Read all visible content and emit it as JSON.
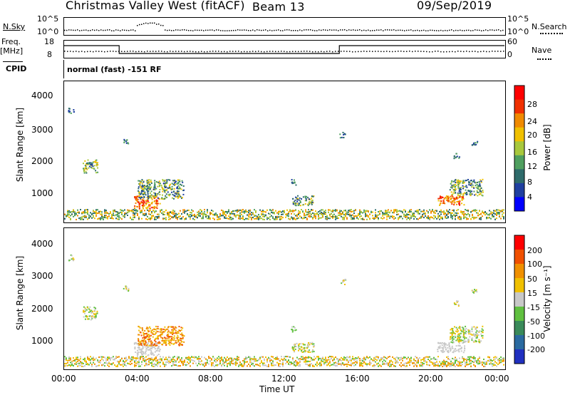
{
  "header": {
    "station": "Christmas Valley West (fitACF)",
    "beam": "Beam 13",
    "date": "09/Sep/2019"
  },
  "strip_panels": {
    "nsky_label": "N.Sky",
    "nsky_ticks": [
      "10^5",
      "10^0"
    ],
    "nsearch_label": "N.Search",
    "nsearch_ticks": [
      "10^5",
      "10^0"
    ],
    "freq_label": "Freq.",
    "freq_unit": "[MHz]",
    "freq_ticks": [
      "18",
      "8"
    ],
    "nave_label": "Nave",
    "nave_ticks": [
      "60",
      "0"
    ],
    "cpid_label": "CPID",
    "cpid_text": "normal (fast) -151 RF"
  },
  "power_panel": {
    "ylabel": "Slant Range [km]",
    "yticks": [
      "4000",
      "3000",
      "2000",
      "1000"
    ],
    "colorbar_label": "Power [dB]",
    "colorbar_ticks": [
      "28",
      "24",
      "20",
      "16",
      "12",
      "8",
      "4"
    ],
    "colors": [
      "#0000ff",
      "#1f3fa0",
      "#2e6b6b",
      "#4f9f5f",
      "#a8c83c",
      "#f0c000",
      "#f08a00",
      "#f03000",
      "#ff0000"
    ]
  },
  "velocity_panel": {
    "ylabel": "Slant Range [km]",
    "yticks": [
      "4000",
      "3000",
      "2000",
      "1000"
    ],
    "colorbar_label": "Velocity [m s⁻¹]",
    "colorbar_ticks": [
      "200",
      "100",
      "50",
      "15",
      "-15",
      "-50",
      "-100",
      "-200"
    ],
    "colors": [
      "#2030c0",
      "#2a6aa0",
      "#3a8a5a",
      "#60c040",
      "#c8c8c8",
      "#f0c000",
      "#f09000",
      "#f05000",
      "#ff0000"
    ]
  },
  "xaxis": {
    "label": "Time UT",
    "ticks": [
      "00:00",
      "04:00",
      "08:00",
      "12:00",
      "16:00",
      "20:00",
      "00:00"
    ]
  },
  "chart_data": {
    "type": "heatmap",
    "x_range_hours": [
      0,
      24
    ],
    "y_range_km": [
      180,
      4500
    ],
    "scatter_regions": [
      {
        "t": [
          1.0,
          1.8
        ],
        "r": [
          1700,
          2100
        ]
      },
      {
        "t": [
          3.8,
          5.2
        ],
        "r": [
          600,
          1000
        ]
      },
      {
        "t": [
          4.0,
          6.5
        ],
        "r": [
          900,
          1500
        ]
      },
      {
        "t": [
          12.4,
          13.6
        ],
        "r": [
          700,
          1000
        ]
      },
      {
        "t": [
          20.3,
          21.8
        ],
        "r": [
          700,
          1000
        ]
      },
      {
        "t": [
          21.0,
          22.8
        ],
        "r": [
          1000,
          1500
        ]
      }
    ]
  }
}
